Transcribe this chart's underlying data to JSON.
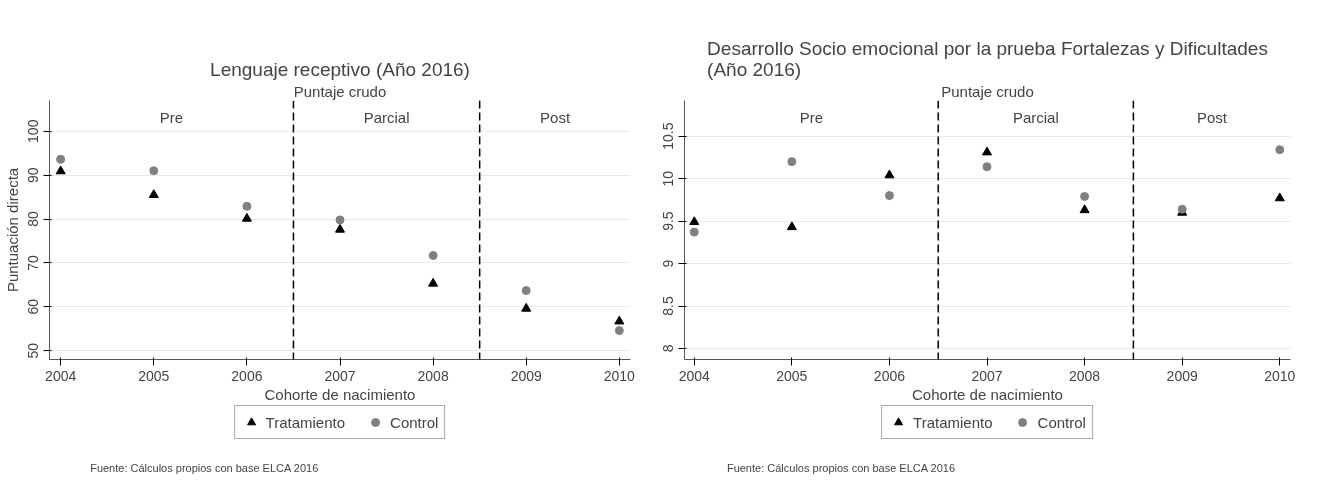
{
  "chart_data": [
    {
      "type": "scatter",
      "title": "Lenguaje receptivo (Año 2016)",
      "subtitle": "Puntaje crudo",
      "xlabel": "Cohorte de nacimiento",
      "ylabel": "Puntuación directa",
      "x": [
        2004,
        2005,
        2006,
        2007,
        2008,
        2009,
        2010
      ],
      "series": [
        {
          "name": "Tratamiento",
          "color": "#000000",
          "marker": "triangle",
          "values": [
            90.9,
            85.5,
            80.1,
            77.6,
            65.3,
            59.6,
            56.7
          ]
        },
        {
          "name": "Control",
          "color": "#808080",
          "marker": "circle",
          "values": [
            93.6,
            91.0,
            82.9,
            79.8,
            71.7,
            63.7,
            54.6
          ]
        }
      ],
      "xlim": [
        2003.88,
        2010.12
      ],
      "xticks": [
        2004,
        2005,
        2006,
        2007,
        2008,
        2009,
        2010
      ],
      "ylim": [
        48,
        107
      ],
      "yticks": [
        50,
        60,
        70,
        80,
        90,
        100
      ],
      "ref_lines": [
        {
          "axis": "x",
          "value": 2006.5,
          "line_style": "dashed"
        },
        {
          "axis": "x",
          "value": 2008.5,
          "line_style": "dashed"
        }
      ],
      "annotations": [
        "Pre",
        "Parcial",
        "Post",
        "Fuente: Cálculos propios con base ELCA 2016"
      ],
      "grid": "y",
      "legend": "bottom"
    },
    {
      "type": "scatter",
      "title": "Desarrollo Socio emocional por la prueba Fortalezas y Dificultades\n(Año 2016)",
      "subtitle": "Puntaje crudo",
      "xlabel": "Cohorte de nacimiento",
      "x": [
        2004,
        2005,
        2006,
        2007,
        2008,
        2009,
        2010
      ],
      "series": [
        {
          "name": "Tratamiento",
          "color": "#000000",
          "marker": "triangle",
          "values": [
            9.49,
            9.43,
            10.04,
            10.31,
            9.63,
            9.6,
            9.77
          ]
        },
        {
          "name": "Control",
          "color": "#808080",
          "marker": "circle",
          "values": [
            9.37,
            10.2,
            9.8,
            10.14,
            9.79,
            9.64,
            10.34
          ]
        }
      ],
      "xlim": [
        2003.9,
        2010.11
      ],
      "xticks": [
        2004,
        2005,
        2006,
        2007,
        2008,
        2009,
        2010
      ],
      "ylim": [
        7.87,
        10.92
      ],
      "yticks": [
        8,
        8.5,
        9,
        9.5,
        10,
        10.5
      ],
      "ref_lines": [
        {
          "axis": "x",
          "value": 2006.5,
          "line_style": "dashed"
        },
        {
          "axis": "x",
          "value": 2008.5,
          "line_style": "dashed"
        }
      ],
      "annotations": [
        "Pre",
        "Parcial",
        "Post",
        "Fuente: Cálculos propios con base ELCA 2016"
      ],
      "grid": "y",
      "legend": "bottom"
    }
  ]
}
